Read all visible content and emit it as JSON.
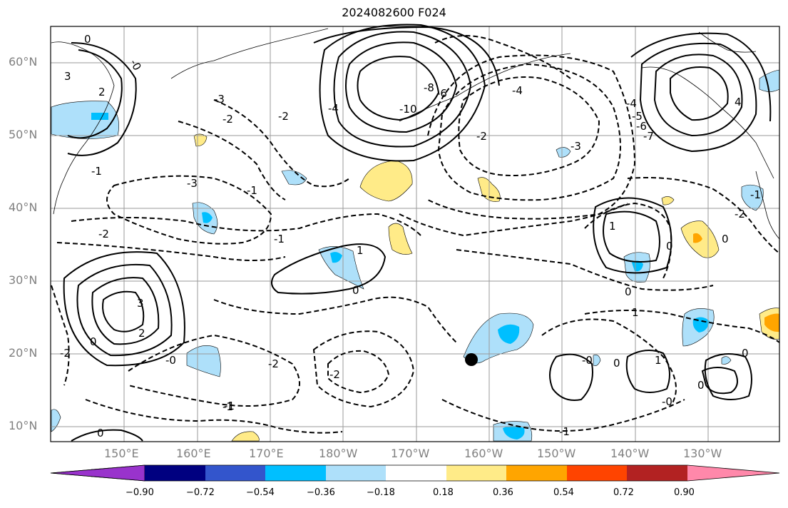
{
  "title": "2024082600 F024",
  "lat_labels": [
    "60°N",
    "50°N",
    "40°N",
    "30°N",
    "20°N",
    "10°N"
  ],
  "lon_labels": [
    "150°E",
    "160°E",
    "170°E",
    "180°W",
    "170°W",
    "160°W",
    "150°W",
    "140°W",
    "130°W"
  ],
  "colorbar": {
    "colors": [
      "#9933cc",
      "#000080",
      "#3355cc",
      "#00bfff",
      "#aee0fa",
      "#ffffff",
      "#ffeb88",
      "#ffa500",
      "#ff4400",
      "#b22222",
      "#ff88aa"
    ],
    "labels": [
      "−0.90",
      "−0.72",
      "−0.54",
      "−0.36",
      "−0.18",
      "0.18",
      "0.36",
      "0.54",
      "0.72",
      "0.90"
    ]
  },
  "contour_labels": [
    "0",
    "-0",
    "3",
    "2",
    "-3",
    "-2",
    "-1",
    "-3",
    "-2",
    "-1",
    "-2",
    "-4",
    "-6",
    "-8",
    "-10",
    "-4",
    "-3",
    "-2",
    "-4",
    "-5",
    "-6",
    "-7",
    "4",
    "-1",
    "0",
    "-1",
    "0",
    "-2",
    "3",
    "2",
    "0",
    "-2",
    "-1",
    "-0",
    "-2",
    "0",
    "1",
    "1",
    "0",
    "0",
    "1",
    "-0",
    "0",
    "1",
    "-0",
    "0",
    "-1",
    "-2",
    "0",
    "-1"
  ]
}
